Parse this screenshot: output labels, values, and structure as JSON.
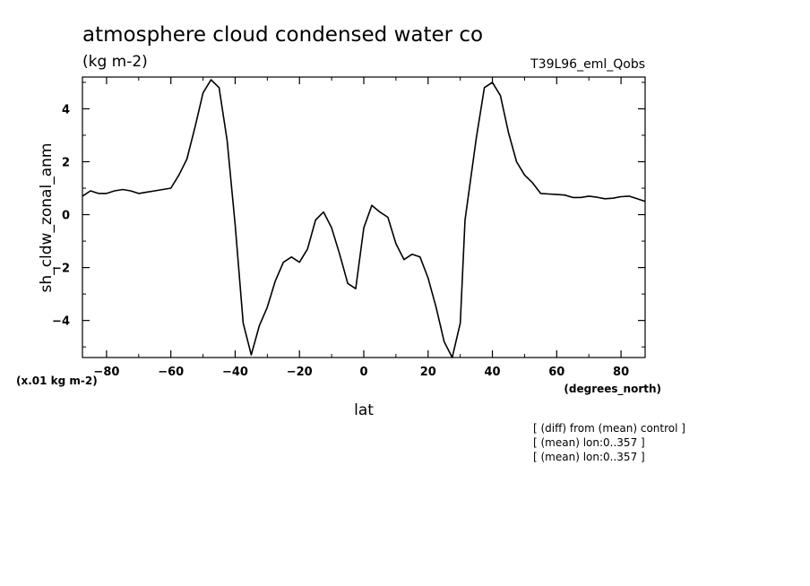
{
  "header": {
    "title": "atmosphere cloud condensed water co",
    "units": "(kg m-2)",
    "experiment": "T39L96_eml_Qobs"
  },
  "axis_notes": {
    "y_scale": "(x.01 kg m-2)",
    "x_units": "(degrees_north)"
  },
  "notes": [
    "[ (diff) from (mean) control ]",
    "[ (mean) lon:0..357 ]",
    "[ (mean) lon:0..357 ]"
  ],
  "chart_data": {
    "type": "line",
    "title": "atmosphere cloud condensed water co",
    "xlabel": "lat",
    "ylabel": "sh_cldw_zonal_anm",
    "xlim": [
      -87.5,
      87.5
    ],
    "ylim": [
      -5.4,
      5.2
    ],
    "xticks": [
      -80,
      -60,
      -40,
      -20,
      0,
      20,
      40,
      60,
      80
    ],
    "yticks": [
      -4,
      -2,
      0,
      2,
      4
    ],
    "grid": false,
    "series": [
      {
        "x": [
          -87.5,
          -85,
          -82.5,
          -80,
          -77.5,
          -75,
          -72.5,
          -70,
          -67.5,
          -65,
          -62.5,
          -60,
          -57.5,
          -55,
          -52.5,
          -50,
          -47.5,
          -45,
          -42.5,
          -40,
          -37.5,
          -35,
          -32.5,
          -30,
          -27.5,
          -25,
          -22.5,
          -20,
          -17.5,
          -15,
          -12.5,
          -10,
          -7.5,
          -5,
          -2.5,
          0,
          2.5,
          5,
          7.5,
          10,
          12.5,
          15,
          17.5,
          20,
          22.5,
          25,
          27.5,
          30,
          31.5,
          35,
          37.5,
          40,
          42.5,
          45,
          47.5,
          50,
          52.5,
          55,
          57.5,
          60,
          62.5,
          65,
          67.5,
          70,
          72.5,
          75,
          77.5,
          80,
          82.5,
          85,
          87.5
        ],
        "y": [
          0.7,
          0.9,
          0.8,
          0.8,
          0.9,
          0.95,
          0.9,
          0.8,
          0.85,
          0.9,
          0.95,
          1.0,
          1.5,
          2.1,
          3.3,
          4.6,
          5.1,
          4.8,
          2.8,
          -0.4,
          -4.1,
          -5.3,
          -4.2,
          -3.5,
          -2.5,
          -1.8,
          -1.6,
          -1.8,
          -1.3,
          -0.2,
          0.1,
          -0.5,
          -1.5,
          -2.6,
          -2.8,
          -0.5,
          0.35,
          0.1,
          -0.1,
          -1.1,
          -1.7,
          -1.5,
          -1.6,
          -2.4,
          -3.5,
          -4.8,
          -5.4,
          -4.1,
          -0.2,
          2.9,
          4.8,
          5.0,
          4.5,
          3.1,
          2.0,
          1.5,
          1.2,
          0.8,
          0.78,
          0.76,
          0.74,
          0.65,
          0.65,
          0.7,
          0.66,
          0.6,
          0.62,
          0.68,
          0.7,
          0.6,
          0.5
        ]
      }
    ]
  }
}
